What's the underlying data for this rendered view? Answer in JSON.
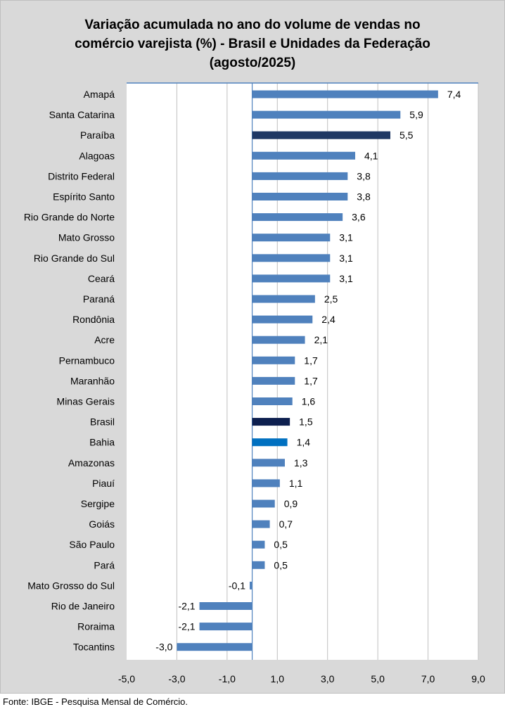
{
  "title_lines": [
    "Variação acumulada no ano do volume de vendas no",
    "comércio varejista (%) - Brasil e Unidades da Federação",
    "(agosto/2025)"
  ],
  "source": "Fonte: IBGE - Pesquisa Mensal de Comércio.",
  "colors": {
    "default_bar": "#4f81bd",
    "paraiba_bar": "#1f3864",
    "brasil_bar": "#0d1f4f",
    "bahia_bar": "#0070c0",
    "frame_bg": "#d9d9d9",
    "plot_bg": "#ffffff",
    "grid": "#bfbfbf",
    "axis": "#4f81bd"
  },
  "chart_data": {
    "type": "bar",
    "orientation": "horizontal",
    "title": "Variação acumulada no ano do volume de vendas no comércio varejista (%) - Brasil e Unidades da Federação (agosto/2025)",
    "xlabel": "",
    "ylabel": "",
    "xlim": [
      -5.0,
      9.0
    ],
    "grid": true,
    "ticks": [
      -5.0,
      -3.0,
      -1.0,
      1.0,
      3.0,
      5.0,
      7.0,
      9.0
    ],
    "tick_labels": [
      "-5,0",
      "-3,0",
      "-1,0",
      "1,0",
      "3,0",
      "5,0",
      "7,0",
      "9,0"
    ],
    "categories": [
      "Amapá",
      "Santa Catarina",
      "Paraíba",
      "Alagoas",
      "Distrito Federal",
      "Espírito Santo",
      "Rio Grande do Norte",
      "Mato Grosso",
      "Rio Grande do Sul",
      "Ceará",
      "Paraná",
      "Rondônia",
      "Acre",
      "Pernambuco",
      "Maranhão",
      "Minas Gerais",
      "Brasil",
      "Bahia",
      "Amazonas",
      "Piauí",
      "Sergipe",
      "Goiás",
      "São Paulo",
      "Pará",
      "Mato Grosso do Sul",
      "Rio de Janeiro",
      "Roraima",
      "Tocantins"
    ],
    "values": [
      7.4,
      5.9,
      5.5,
      4.1,
      3.8,
      3.8,
      3.6,
      3.1,
      3.1,
      3.1,
      2.5,
      2.4,
      2.1,
      1.7,
      1.7,
      1.6,
      1.5,
      1.4,
      1.3,
      1.1,
      0.9,
      0.7,
      0.5,
      0.5,
      -0.1,
      -2.1,
      -2.1,
      -3.0
    ],
    "value_labels": [
      "7,4",
      "5,9",
      "5,5",
      "4,1",
      "3,8",
      "3,8",
      "3,6",
      "3,1",
      "3,1",
      "3,1",
      "2,5",
      "2,4",
      "2,1",
      "1,7",
      "1,7",
      "1,6",
      "1,5",
      "1,4",
      "1,3",
      "1,1",
      "0,9",
      "0,7",
      "0,5",
      "0,5",
      "-0,1",
      "-2,1",
      "-2,1",
      "-3,0"
    ],
    "highlights": {
      "Paraíba": "paraiba_bar",
      "Brasil": "brasil_bar",
      "Bahia": "bahia_bar"
    }
  }
}
